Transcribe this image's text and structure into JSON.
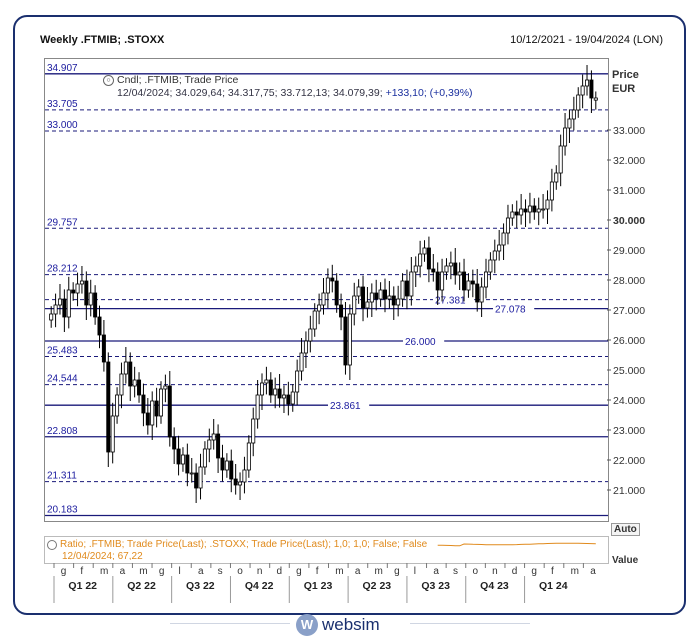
{
  "header": {
    "title": "Weekly .FTMIB; .STOXX",
    "date_range": "10/12/2021 - 19/04/2024 (LON)"
  },
  "legend": {
    "line1": "Cndl; .FTMIB; Trade Price",
    "line2_prefix": "12/04/2024; 34.029,64; 34.317,75; 33.712,13; 34.079,39;",
    "line2_change": "+133,10; (+0,39%)"
  },
  "price_axis": {
    "title_line1": "Price",
    "title_line2": "EUR",
    "auto_label": "Auto",
    "value_label": "Value"
  },
  "lower_panel": {
    "line1": "Ratio; .FTMIB; Trade Price(Last); .STOXX; Trade Price(Last);  1,0; 1,0; False; False",
    "line2": "12/04/2024; 67,22"
  },
  "logo": {
    "text": "websim",
    "icon": "websim-logo-icon"
  },
  "colors": {
    "navy": "#1a1a7a",
    "candle": "#000000",
    "ratio": "#e08a1c",
    "axis_text": "#333333",
    "level_text": "#1a1a9e"
  },
  "chart_data": {
    "type": "candlestick",
    "instrument": ".FTMIB",
    "interval": "Weekly",
    "ylim": [
      20000,
      35400
    ],
    "y_ticks": [
      {
        "value": 21000,
        "label": "21.000"
      },
      {
        "value": 22000,
        "label": "22.000"
      },
      {
        "value": 23000,
        "label": "23.000"
      },
      {
        "value": 24000,
        "label": "24.000"
      },
      {
        "value": 25000,
        "label": "25.000"
      },
      {
        "value": 26000,
        "label": "26.000"
      },
      {
        "value": 27000,
        "label": "27.000"
      },
      {
        "value": 28000,
        "label": "28.000"
      },
      {
        "value": 29000,
        "label": "29.000"
      },
      {
        "value": 30000,
        "label": "30.000",
        "bold": true
      },
      {
        "value": 31000,
        "label": "31.000"
      },
      {
        "value": 32000,
        "label": "32.000"
      },
      {
        "value": 33000,
        "label": "33.000"
      }
    ],
    "levels": [
      {
        "value": 34907,
        "label": "34.907",
        "style": "solid",
        "label_pos": "left"
      },
      {
        "value": 33705,
        "label": "33.705",
        "style": "dashed",
        "label_pos": "left"
      },
      {
        "value": 33000,
        "label": "33.000",
        "style": "dashed",
        "label_pos": "left"
      },
      {
        "value": 29757,
        "label": "29.757",
        "style": "dashed",
        "label_pos": "left"
      },
      {
        "value": 28212,
        "label": "28.212",
        "style": "dashed",
        "label_pos": "left"
      },
      {
        "value": 27381,
        "label": "27.381",
        "style": "dashed",
        "label_pos": "mid1"
      },
      {
        "value": 27078,
        "label": "27.078",
        "style": "solid",
        "label_pos": "mid2"
      },
      {
        "value": 26000,
        "label": "26.000",
        "style": "solid",
        "label_pos": "mid3"
      },
      {
        "value": 25483,
        "label": "25.483",
        "style": "dashed",
        "label_pos": "left"
      },
      {
        "value": 24544,
        "label": "24.544",
        "style": "dashed",
        "label_pos": "left"
      },
      {
        "value": 23861,
        "label": "23.861",
        "style": "solid",
        "label_pos": "mid4"
      },
      {
        "value": 22808,
        "label": "22.808",
        "style": "solid",
        "label_pos": "left"
      },
      {
        "value": 21311,
        "label": "21.311",
        "style": "dashed",
        "label_pos": "left"
      },
      {
        "value": 20183,
        "label": "20.183",
        "style": "solid",
        "label_pos": "left"
      }
    ],
    "month_labels": [
      "g",
      "f",
      "m",
      "a",
      "m",
      "g",
      "l",
      "a",
      "s",
      "o",
      "n",
      "d",
      "g",
      "f",
      "m",
      "a",
      "m",
      "g",
      "l",
      "a",
      "s",
      "o",
      "n",
      "d",
      "g",
      "f",
      "m",
      "a"
    ],
    "quarter_labels": [
      "Q1 22",
      "Q2 22",
      "Q3 22",
      "Q4 22",
      "Q1 23",
      "Q2 23",
      "Q3 23",
      "Q4 23",
      "Q1 24"
    ],
    "close_series": [
      26900,
      27200,
      27400,
      26800,
      27700,
      27600,
      27900,
      28000,
      27200,
      27600,
      26800,
      26200,
      25300,
      22300,
      23500,
      24200,
      24900,
      25300,
      24500,
      24700,
      24200,
      23600,
      23200,
      24000,
      23500,
      24400,
      24500,
      22800,
      22400,
      21900,
      22200,
      21600,
      21600,
      21100,
      21800,
      22400,
      22700,
      22900,
      22100,
      21700,
      22000,
      21400,
      21200,
      21300,
      21700,
      22600,
      23400,
      24200,
      24600,
      24700,
      24200,
      24400,
      24100,
      24200,
      23900,
      24300,
      25000,
      25600,
      26000,
      26400,
      27000,
      27200,
      27600,
      28100,
      28000,
      27200,
      26800,
      25200,
      26900,
      27500,
      27800,
      27100,
      27300,
      27600,
      27400,
      27700,
      27400,
      27500,
      27200,
      27400,
      28000,
      27500,
      28300,
      28500,
      28900,
      29100,
      28400,
      28300,
      27700,
      28300,
      28500,
      28600,
      28200,
      28300,
      27700,
      28000,
      27900,
      27300,
      27800,
      28300,
      28700,
      29000,
      29200,
      29600,
      30100,
      30300,
      30200,
      30400,
      30300,
      30500,
      30300,
      30400,
      30400,
      30700,
      31300,
      31600,
      32500,
      33100,
      33400,
      33700,
      34200,
      34500,
      34700,
      34100,
      34100
    ],
    "last_candle": {
      "date": "12/04/2024",
      "open": 34029.64,
      "high": 34317.75,
      "low": 33712.13,
      "close": 34079.39
    }
  }
}
